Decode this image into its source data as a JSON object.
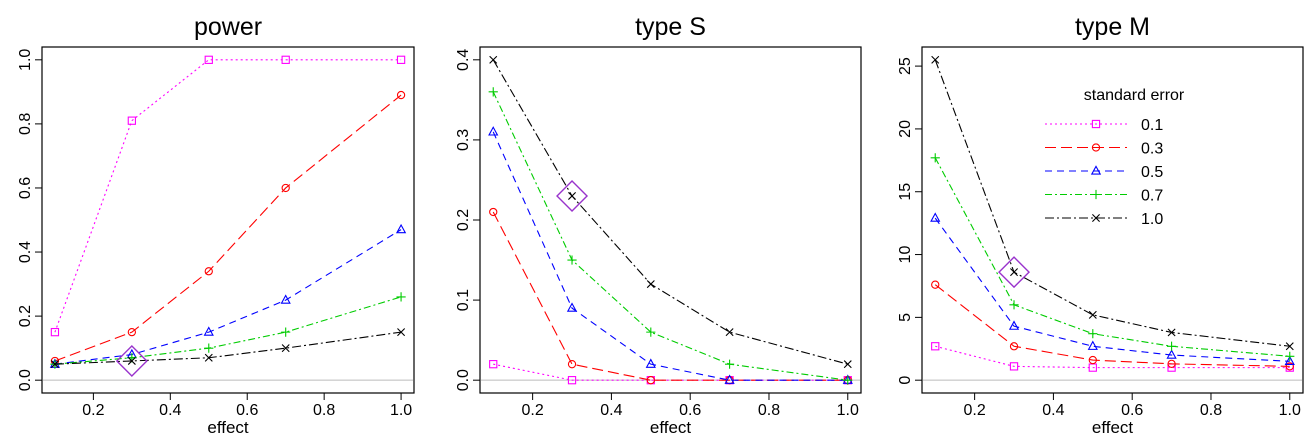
{
  "chart_data": [
    {
      "type": "line",
      "title": "power",
      "xlabel": "effect",
      "ylabel": "",
      "x": [
        0.1,
        0.3,
        0.5,
        0.7,
        1.0
      ],
      "xticks": [
        "0.2",
        "0.4",
        "0.6",
        "0.8",
        "1.0"
      ],
      "yticks": [
        "0.0",
        "0.2",
        "0.4",
        "0.6",
        "0.8",
        "1.0"
      ],
      "ylim": [
        0,
        1.0
      ],
      "series": [
        {
          "name": "0.1",
          "values": [
            0.15,
            0.81,
            1.0,
            1.0,
            1.0
          ]
        },
        {
          "name": "0.3",
          "values": [
            0.06,
            0.15,
            0.34,
            0.6,
            0.89
          ]
        },
        {
          "name": "0.5",
          "values": [
            0.05,
            0.08,
            0.15,
            0.25,
            0.47
          ]
        },
        {
          "name": "0.7",
          "values": [
            0.05,
            0.07,
            0.1,
            0.15,
            0.26
          ]
        },
        {
          "name": "1.0",
          "values": [
            0.05,
            0.06,
            0.07,
            0.1,
            0.15
          ]
        }
      ],
      "highlight": {
        "x": 0.3,
        "y": 0.06
      },
      "hline": 0,
      "grid": false
    },
    {
      "type": "line",
      "title": "type S",
      "xlabel": "effect",
      "ylabel": "",
      "x": [
        0.1,
        0.3,
        0.5,
        0.7,
        1.0
      ],
      "xticks": [
        "0.2",
        "0.4",
        "0.6",
        "0.8",
        "1.0"
      ],
      "yticks": [
        "0.0",
        "0.1",
        "0.2",
        "0.3",
        "0.4"
      ],
      "ylim": [
        0,
        0.4
      ],
      "series": [
        {
          "name": "0.1",
          "values": [
            0.02,
            0.0,
            0.0,
            0.0,
            0.0
          ]
        },
        {
          "name": "0.3",
          "values": [
            0.21,
            0.02,
            0.0,
            0.0,
            0.0
          ]
        },
        {
          "name": "0.5",
          "values": [
            0.31,
            0.09,
            0.02,
            0.0,
            0.0
          ]
        },
        {
          "name": "0.7",
          "values": [
            0.36,
            0.15,
            0.06,
            0.02,
            0.0
          ]
        },
        {
          "name": "1.0",
          "values": [
            0.4,
            0.23,
            0.12,
            0.06,
            0.02
          ]
        }
      ],
      "highlight": {
        "x": 0.3,
        "y": 0.23
      },
      "hline": 0,
      "grid": false
    },
    {
      "type": "line",
      "title": "type M",
      "xlabel": "effect",
      "ylabel": "",
      "x": [
        0.1,
        0.3,
        0.5,
        0.7,
        1.0
      ],
      "xticks": [
        "0.2",
        "0.4",
        "0.6",
        "0.8",
        "1.0"
      ],
      "yticks": [
        "0",
        "5",
        "10",
        "15",
        "20",
        "25"
      ],
      "ylim": [
        0,
        25
      ],
      "series": [
        {
          "name": "0.1",
          "values": [
            2.7,
            1.1,
            1.0,
            1.0,
            1.0
          ]
        },
        {
          "name": "0.3",
          "values": [
            7.6,
            2.7,
            1.6,
            1.3,
            1.1
          ]
        },
        {
          "name": "0.5",
          "values": [
            12.9,
            4.3,
            2.7,
            2.0,
            1.5
          ]
        },
        {
          "name": "0.7",
          "values": [
            17.7,
            6.0,
            3.7,
            2.7,
            1.9
          ]
        },
        {
          "name": "1.0",
          "values": [
            25.5,
            8.6,
            5.2,
            3.8,
            2.7
          ]
        }
      ],
      "highlight": {
        "x": 0.3,
        "y": 8.6
      },
      "hline": 0,
      "grid": false,
      "legend": {
        "title": "standard error",
        "placement": "top-right"
      }
    }
  ],
  "series_style": [
    {
      "color": "#ff00ff",
      "marker": "square"
    },
    {
      "color": "#ff0000",
      "marker": "circle"
    },
    {
      "color": "#0000ff",
      "marker": "triangle"
    },
    {
      "color": "#00cc00",
      "marker": "plus"
    },
    {
      "color": "#000000",
      "marker": "cross"
    }
  ],
  "highlight_color": "#9933cc",
  "zero_line_color": "#bbbbbb"
}
